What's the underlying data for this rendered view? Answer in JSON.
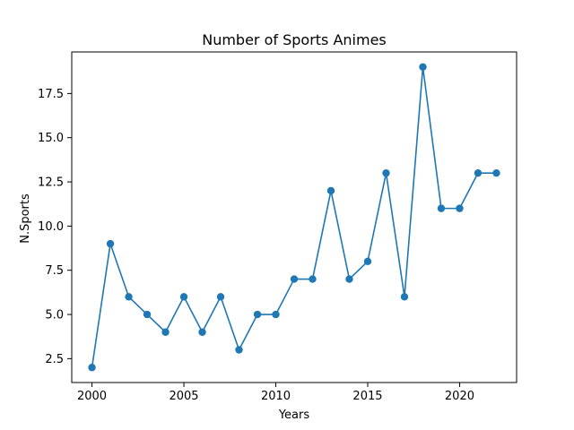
{
  "chart_data": {
    "type": "line",
    "title": "Number of Sports Animes",
    "xlabel": "Years",
    "ylabel": "N.Sports",
    "x": [
      2000,
      2001,
      2002,
      2003,
      2004,
      2005,
      2006,
      2007,
      2008,
      2009,
      2010,
      2011,
      2012,
      2013,
      2014,
      2015,
      2016,
      2017,
      2018,
      2019,
      2020,
      2021,
      2022
    ],
    "series": [
      {
        "values": [
          2,
          9,
          6,
          5,
          4,
          6,
          4,
          6,
          3,
          5,
          5,
          7,
          7,
          12,
          7,
          8,
          13,
          6,
          19,
          11,
          11,
          13,
          13
        ],
        "color": "#1f77b4",
        "marker": "circle"
      }
    ],
    "xlim": [
      1998.9,
      2023.1
    ],
    "ylim": [
      1.15,
      19.85
    ],
    "xticks": [
      2000,
      2005,
      2010,
      2015,
      2020
    ],
    "xtick_labels": [
      "2000",
      "2005",
      "2010",
      "2015",
      "2020"
    ],
    "yticks": [
      2.5,
      5.0,
      7.5,
      10.0,
      12.5,
      15.0,
      17.5
    ],
    "ytick_labels": [
      "2.5",
      "5.0",
      "7.5",
      "10.0",
      "12.5",
      "15.0",
      "17.5"
    ],
    "grid": false,
    "legend": "none"
  }
}
